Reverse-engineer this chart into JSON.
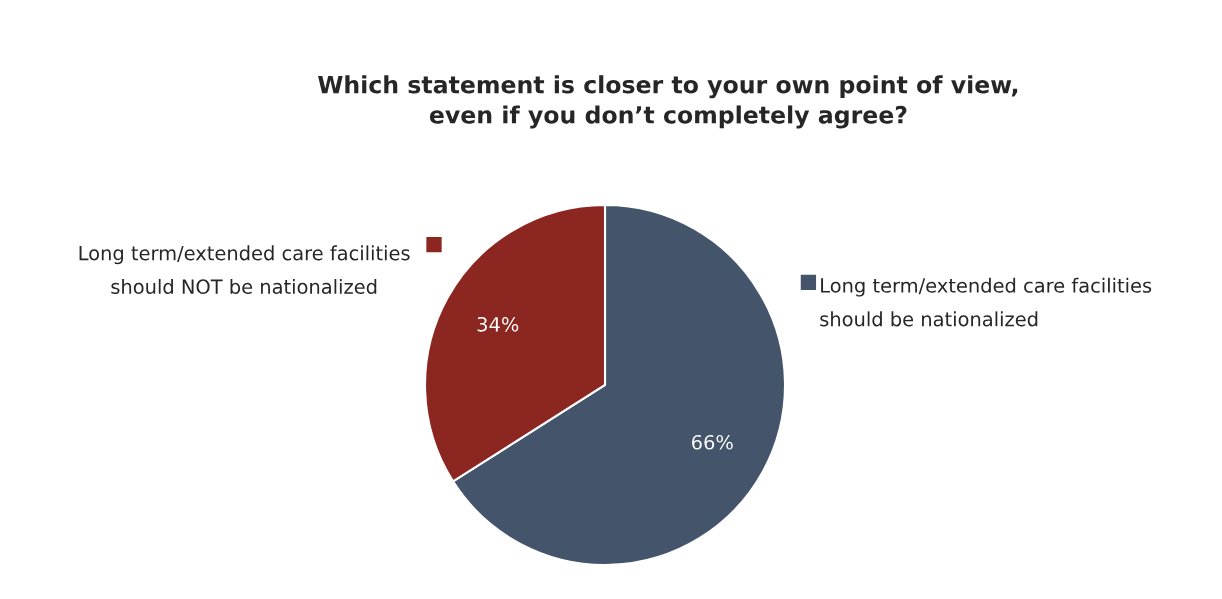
{
  "chart_data": {
    "type": "pie",
    "title": "Which statement is closer to your own point of view,\neven if you don’t completely agree?",
    "categories": [
      "Long term/extended care facilities\nshould be nationalized",
      "Long term/extended care facilities\nshould NOT be nationalized"
    ],
    "values": [
      66,
      34
    ],
    "colors": [
      "#44546a",
      "#8b2720"
    ],
    "value_labels": [
      "66%",
      "34%"
    ]
  }
}
